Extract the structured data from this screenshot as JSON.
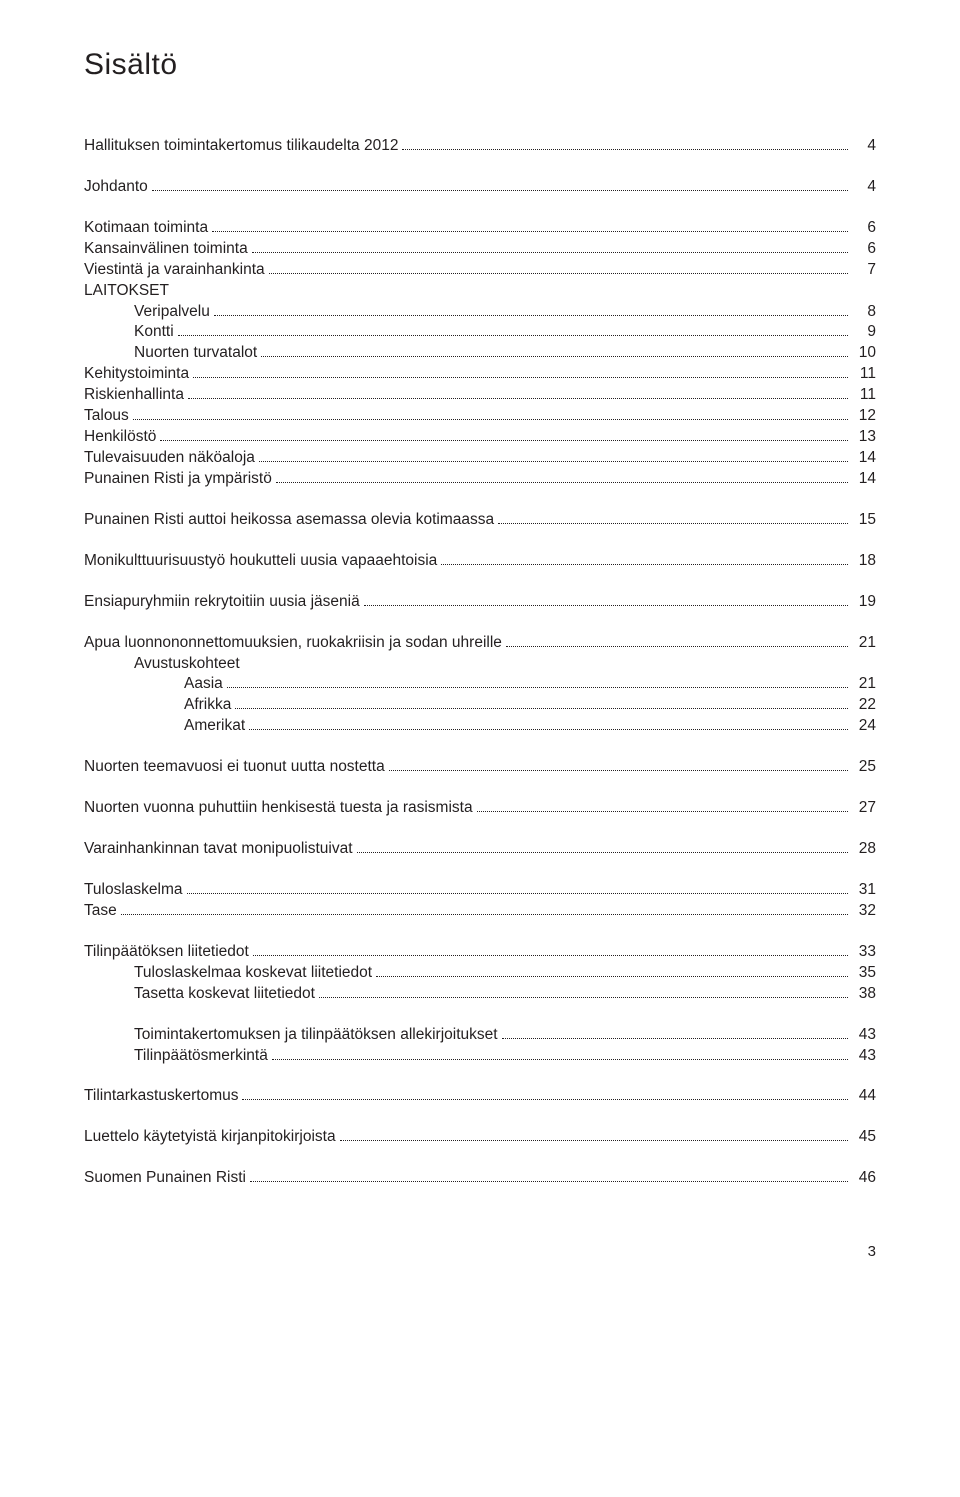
{
  "title": "Sisältö",
  "page_number": "3",
  "colors": {
    "text": "#231f20",
    "bg": "#ffffff"
  },
  "toc": [
    {
      "group": [
        {
          "label": "Hallituksen toimintakertomus tilikaudelta 2012",
          "page": "4",
          "indent": 0
        }
      ]
    },
    {
      "group": [
        {
          "label": "Johdanto",
          "page": "4",
          "indent": 0
        }
      ]
    },
    {
      "group": [
        {
          "label": "Kotimaan toiminta",
          "page": "6",
          "indent": 0
        },
        {
          "label": "Kansainvälinen toiminta",
          "page": "6",
          "indent": 0
        },
        {
          "label": "Viestintä ja varainhankinta",
          "page": "7",
          "indent": 0
        },
        {
          "label": "LAITOKSET",
          "page": "",
          "indent": 0,
          "noleader": true
        },
        {
          "label": "Veripalvelu",
          "page": "8",
          "indent": 1
        },
        {
          "label": "Kontti",
          "page": "9",
          "indent": 1
        },
        {
          "label": "Nuorten turvatalot",
          "page": "10",
          "indent": 1
        },
        {
          "label": "Kehitystoiminta",
          "page": "11",
          "indent": 0
        },
        {
          "label": "Riskienhallinta",
          "page": "11",
          "indent": 0
        },
        {
          "label": "Talous",
          "page": "12",
          "indent": 0
        },
        {
          "label": "Henkilöstö",
          "page": "13",
          "indent": 0
        },
        {
          "label": "Tulevaisuuden näköaloja",
          "page": "14",
          "indent": 0
        },
        {
          "label": "Punainen Risti ja ympäristö",
          "page": "14",
          "indent": 0
        }
      ]
    },
    {
      "group": [
        {
          "label": "Punainen Risti auttoi heikossa asemassa olevia kotimaassa",
          "page": "15",
          "indent": 0
        }
      ]
    },
    {
      "group": [
        {
          "label": "Monikulttuurisuustyö houkutteli uusia vapaaehtoisia",
          "page": "18",
          "indent": 0
        }
      ]
    },
    {
      "group": [
        {
          "label": "Ensiapuryhmiin rekrytoitiin uusia jäseniä",
          "page": "19",
          "indent": 0
        }
      ]
    },
    {
      "group": [
        {
          "label": "Apua luonnononnettomuuksien, ruokakriisin ja sodan uhreille",
          "page": "21",
          "indent": 0
        },
        {
          "label": "Avustuskohteet",
          "page": "",
          "indent": 1,
          "noleader": true
        },
        {
          "label": "Aasia",
          "page": "21",
          "indent": 2
        },
        {
          "label": "Afrikka",
          "page": "22",
          "indent": 2
        },
        {
          "label": "Amerikat",
          "page": "24",
          "indent": 2
        }
      ]
    },
    {
      "group": [
        {
          "label": "Nuorten teemavuosi ei tuonut uutta nostetta",
          "page": "25",
          "indent": 0
        }
      ]
    },
    {
      "group": [
        {
          "label": "Nuorten vuonna puhuttiin henkisestä tuesta ja rasismista",
          "page": "27",
          "indent": 0
        }
      ]
    },
    {
      "group": [
        {
          "label": "Varainhankinnan tavat monipuolistuivat",
          "page": "28",
          "indent": 0
        }
      ]
    },
    {
      "group": [
        {
          "label": "Tuloslaskelma",
          "page": "31",
          "indent": 0
        },
        {
          "label": "Tase",
          "page": "32",
          "indent": 0
        }
      ]
    },
    {
      "group": [
        {
          "label": "Tilinpäätöksen liitetiedot",
          "page": "33",
          "indent": 0
        },
        {
          "label": "Tuloslaskelmaa koskevat liitetiedot",
          "page": "35",
          "indent": 1
        },
        {
          "label": "Tasetta koskevat liitetiedot",
          "page": "38",
          "indent": 1
        }
      ]
    },
    {
      "group": [
        {
          "label": "Toimintakertomuksen ja tilinpäätöksen allekirjoitukset",
          "page": "43",
          "indent": 1
        },
        {
          "label": "Tilinpäätösmerkintä",
          "page": "43",
          "indent": 1
        }
      ]
    },
    {
      "group": [
        {
          "label": "Tilintarkastuskertomus",
          "page": "44",
          "indent": 0
        }
      ]
    },
    {
      "group": [
        {
          "label": "Luettelo käytetyistä kirjanpitokirjoista",
          "page": "45",
          "indent": 0
        }
      ]
    },
    {
      "group": [
        {
          "label": "Suomen Punainen Risti",
          "page": "46",
          "indent": 0
        }
      ]
    }
  ]
}
